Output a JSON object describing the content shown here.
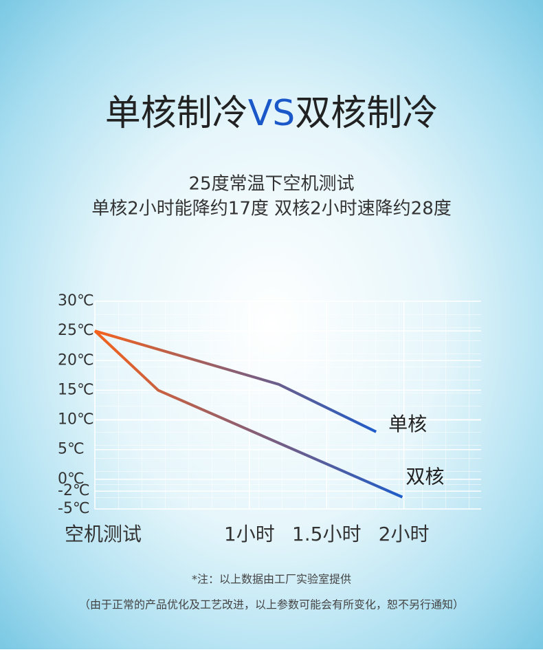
{
  "chart_data": {
    "type": "line",
    "title_parts": [
      "单核制冷",
      "VS",
      "双核制冷"
    ],
    "title_colors": [
      "#222222",
      "#1a58c9",
      "#222222"
    ],
    "subtitle": [
      "25度常温下空机测试",
      "单核2小时能降约17度  双核2小时速降约28度"
    ],
    "xlim": [
      0,
      2.5
    ],
    "xticks": [
      {
        "value": 0,
        "label": "空机测试"
      },
      {
        "value": 1,
        "label": "1小时"
      },
      {
        "value": 1.5,
        "label": "1.5小时"
      },
      {
        "value": 2,
        "label": "2小时"
      }
    ],
    "ylim": [
      -5,
      30
    ],
    "yticks": [
      {
        "value": 30,
        "label": "30℃"
      },
      {
        "value": 25,
        "label": "25℃"
      },
      {
        "value": 20,
        "label": "20℃"
      },
      {
        "value": 15,
        "label": "15℃"
      },
      {
        "value": 10,
        "label": "10℃"
      },
      {
        "value": 5,
        "label": "5℃"
      },
      {
        "value": 0,
        "label": "0℃"
      },
      {
        "value": -2,
        "label": "-2℃"
      },
      {
        "value": -5,
        "label": "-5℃"
      }
    ],
    "grid": true,
    "series": [
      {
        "name": "单核",
        "color": [
          "#f5621c",
          "#1f5cc9"
        ],
        "x": [
          0,
          1.19,
          1.82
        ],
        "values": [
          25,
          16,
          8
        ]
      },
      {
        "name": "双核",
        "color": [
          "#f5621c",
          "#1f5cc9"
        ],
        "x": [
          0,
          0.41,
          1.99
        ],
        "values": [
          25,
          15,
          -3
        ]
      }
    ],
    "notes": [
      "*注：以上数据由工厂实验室提供",
      "（由于正常的产品优化及工艺改进，以上参数可能会有所变化，恕不另行通知）"
    ]
  }
}
